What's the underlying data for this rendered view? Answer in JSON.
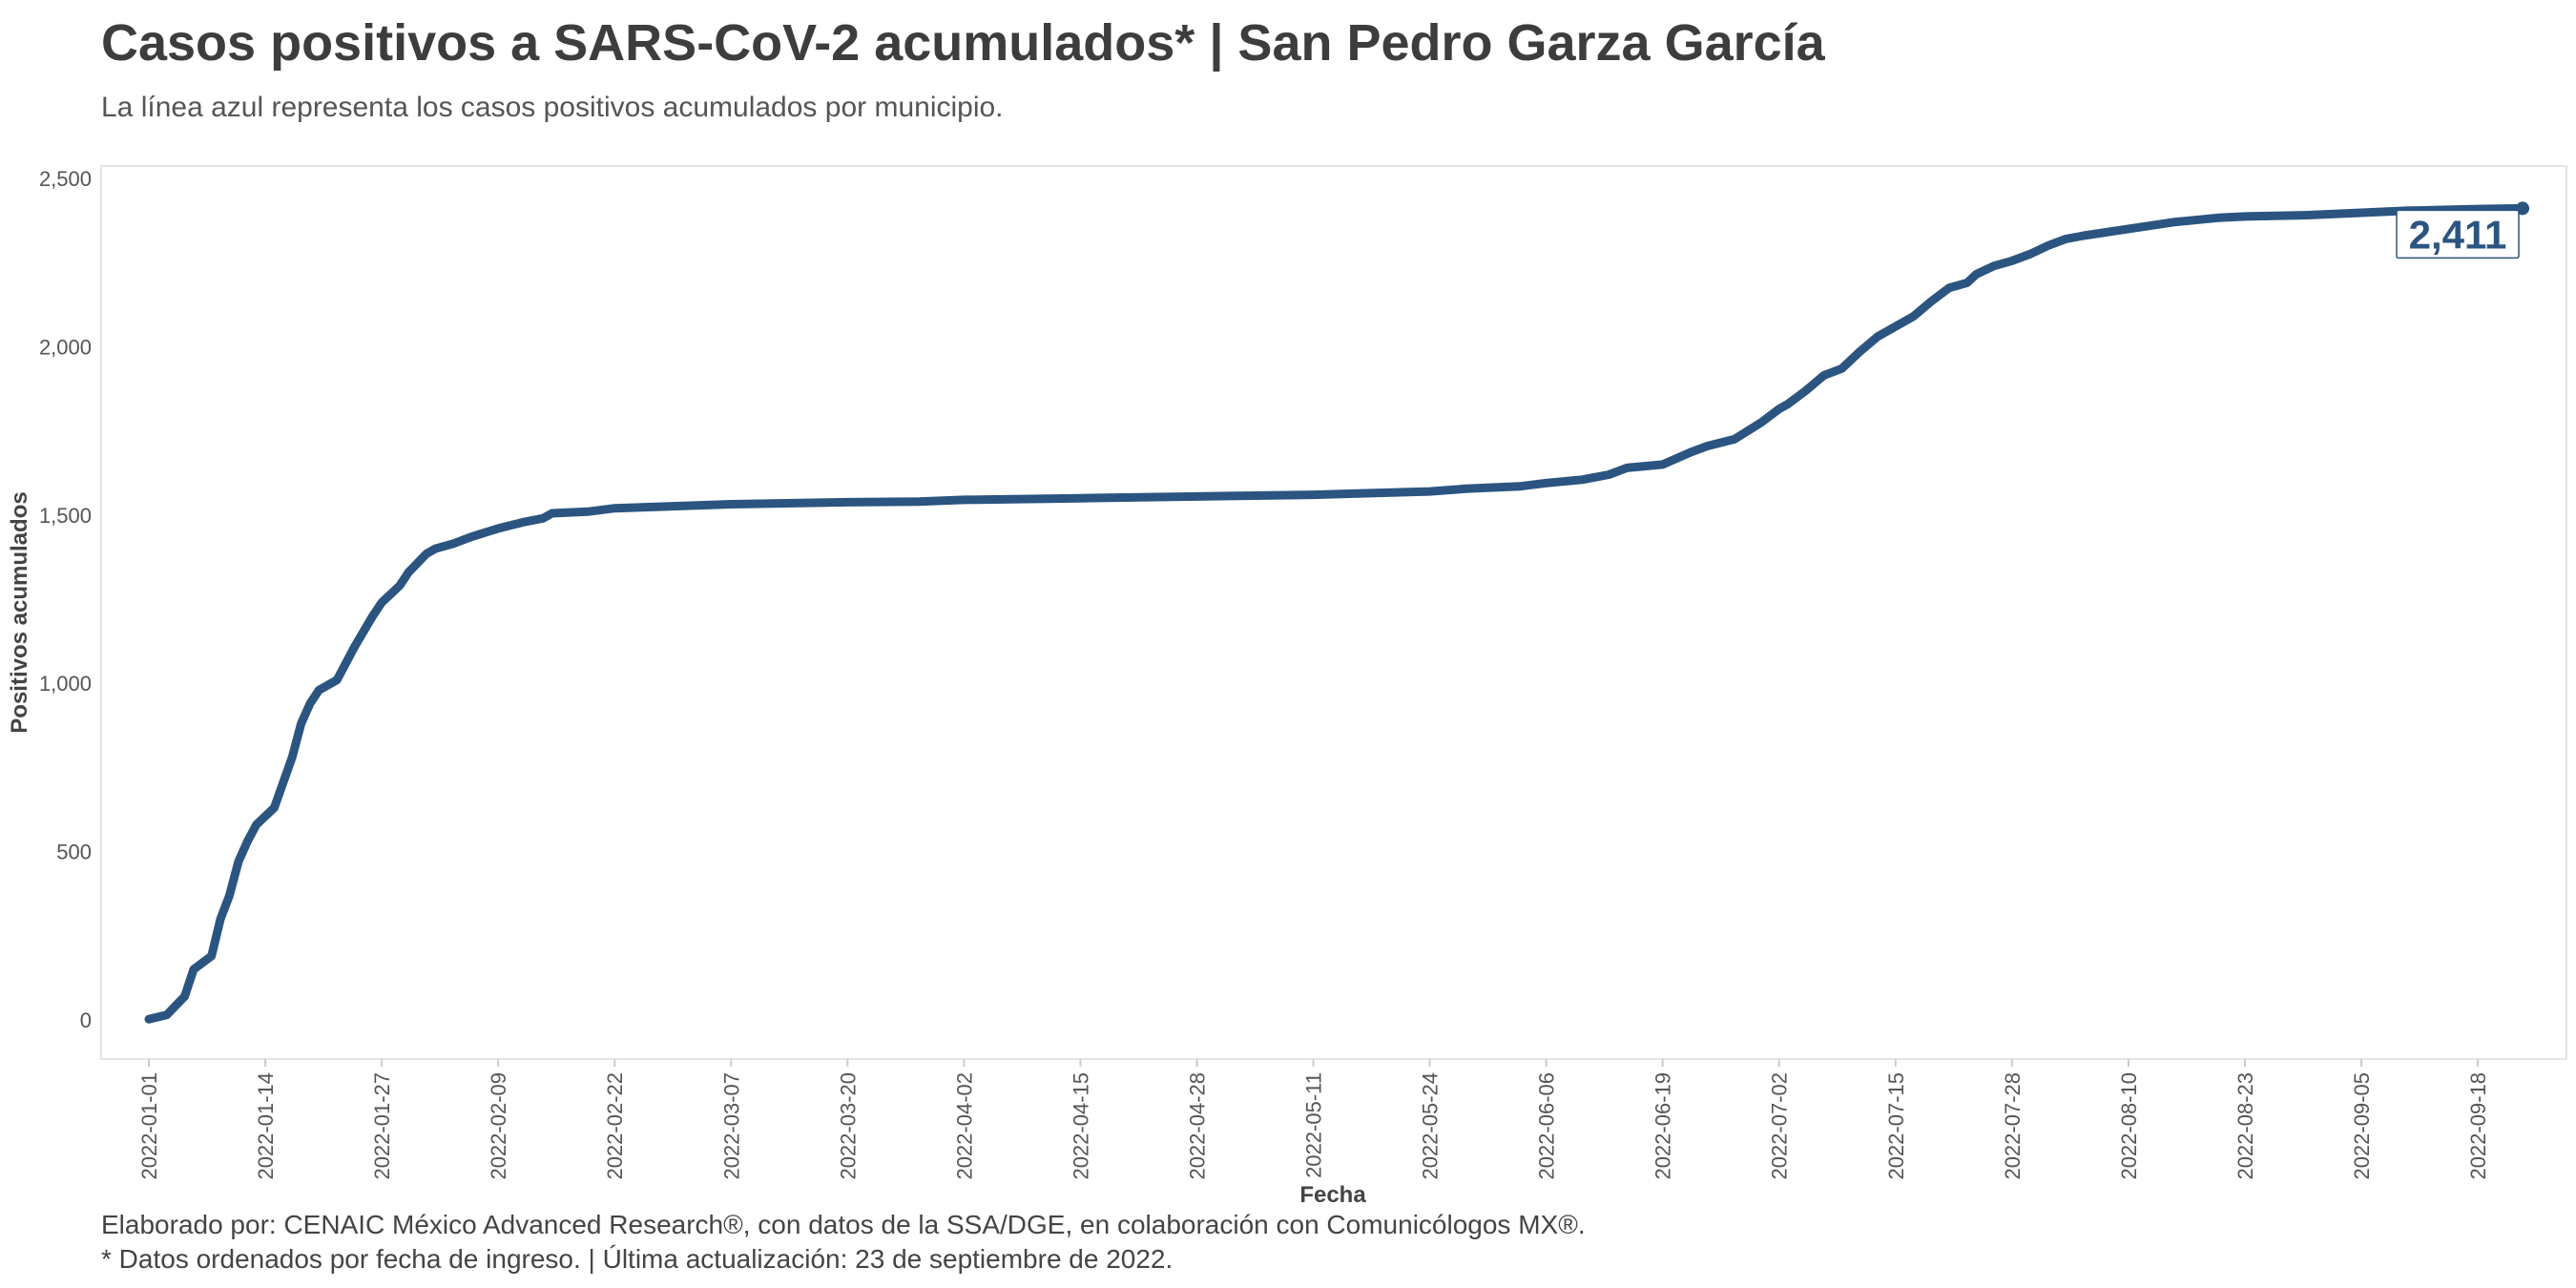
{
  "title": "Casos positivos a SARS-CoV-2 acumulados* | San Pedro Garza García",
  "subtitle": "La línea azul representa los casos positivos acumulados por municipio.",
  "caption": {
    "line1": "Elaborado por: CENAIC México Advanced Research®, con datos de la SSA/DGE, en colaboración con Comunicólogos MX®.",
    "line2": "* Datos ordenados por fecha de ingreso. | Última actualización: 23 de septiembre de 2022."
  },
  "colors": {
    "line": "#2b5580",
    "label_text": "#2b5580",
    "axis_text": "#555555"
  },
  "chart_data": {
    "type": "line",
    "xlabel": "Fecha",
    "ylabel": "Positivos acumulados",
    "ylim": [
      0,
      2500
    ],
    "yticks": [
      0,
      500,
      1000,
      1500,
      2000,
      2500
    ],
    "ytick_labels": [
      "0",
      "500",
      "1,000",
      "1,500",
      "2,000",
      "2,500"
    ],
    "xlim": [
      "2022-01-01",
      "2022-09-23"
    ],
    "xticks": [
      "2022-01-01",
      "2022-01-14",
      "2022-01-27",
      "2022-02-09",
      "2022-02-22",
      "2022-03-07",
      "2022-03-20",
      "2022-04-02",
      "2022-04-15",
      "2022-04-28",
      "2022-05-11",
      "2022-05-24",
      "2022-06-06",
      "2022-06-19",
      "2022-07-02",
      "2022-07-15",
      "2022-07-28",
      "2022-08-10",
      "2022-08-23",
      "2022-09-05",
      "2022-09-18"
    ],
    "grid": false,
    "end_label": "2,411",
    "series": [
      {
        "points": [
          [
            "2022-01-01",
            2
          ],
          [
            "2022-01-03",
            15
          ],
          [
            "2022-01-05",
            70
          ],
          [
            "2022-01-06",
            150
          ],
          [
            "2022-01-08",
            190
          ],
          [
            "2022-01-09",
            300
          ],
          [
            "2022-01-10",
            370
          ],
          [
            "2022-01-11",
            470
          ],
          [
            "2022-01-12",
            530
          ],
          [
            "2022-01-13",
            580
          ],
          [
            "2022-01-15",
            630
          ],
          [
            "2022-01-17",
            780
          ],
          [
            "2022-01-18",
            880
          ],
          [
            "2022-01-19",
            940
          ],
          [
            "2022-01-20",
            980
          ],
          [
            "2022-01-22",
            1010
          ],
          [
            "2022-01-24",
            1110
          ],
          [
            "2022-01-26",
            1200
          ],
          [
            "2022-01-27",
            1240
          ],
          [
            "2022-01-29",
            1290
          ],
          [
            "2022-01-30",
            1330
          ],
          [
            "2022-02-01",
            1385
          ],
          [
            "2022-02-02",
            1400
          ],
          [
            "2022-02-04",
            1415
          ],
          [
            "2022-02-06",
            1435
          ],
          [
            "2022-02-09",
            1460
          ],
          [
            "2022-02-12",
            1480
          ],
          [
            "2022-02-14",
            1490
          ],
          [
            "2022-02-15",
            1505
          ],
          [
            "2022-02-19",
            1510
          ],
          [
            "2022-02-22",
            1520
          ],
          [
            "2022-03-07",
            1532
          ],
          [
            "2022-03-20",
            1538
          ],
          [
            "2022-03-28",
            1540
          ],
          [
            "2022-04-02",
            1545
          ],
          [
            "2022-04-15",
            1550
          ],
          [
            "2022-04-28",
            1555
          ],
          [
            "2022-05-11",
            1560
          ],
          [
            "2022-05-24",
            1570
          ],
          [
            "2022-05-28",
            1578
          ],
          [
            "2022-06-03",
            1585
          ],
          [
            "2022-06-06",
            1595
          ],
          [
            "2022-06-10",
            1605
          ],
          [
            "2022-06-13",
            1620
          ],
          [
            "2022-06-15",
            1640
          ],
          [
            "2022-06-19",
            1650
          ],
          [
            "2022-06-22",
            1685
          ],
          [
            "2022-06-24",
            1705
          ],
          [
            "2022-06-27",
            1725
          ],
          [
            "2022-06-30",
            1775
          ],
          [
            "2022-07-02",
            1815
          ],
          [
            "2022-07-03",
            1830
          ],
          [
            "2022-07-05",
            1870
          ],
          [
            "2022-07-07",
            1915
          ],
          [
            "2022-07-09",
            1935
          ],
          [
            "2022-07-11",
            1985
          ],
          [
            "2022-07-13",
            2030
          ],
          [
            "2022-07-15",
            2060
          ],
          [
            "2022-07-17",
            2090
          ],
          [
            "2022-07-19",
            2135
          ],
          [
            "2022-07-21",
            2175
          ],
          [
            "2022-07-23",
            2190
          ],
          [
            "2022-07-24",
            2215
          ],
          [
            "2022-07-26",
            2240
          ],
          [
            "2022-07-28",
            2255
          ],
          [
            "2022-07-30",
            2275
          ],
          [
            "2022-08-01",
            2300
          ],
          [
            "2022-08-03",
            2320
          ],
          [
            "2022-08-05",
            2330
          ],
          [
            "2022-08-10",
            2350
          ],
          [
            "2022-08-15",
            2370
          ],
          [
            "2022-08-20",
            2383
          ],
          [
            "2022-08-23",
            2387
          ],
          [
            "2022-08-30",
            2391
          ],
          [
            "2022-09-05",
            2398
          ],
          [
            "2022-09-10",
            2404
          ],
          [
            "2022-09-18",
            2409
          ],
          [
            "2022-09-23",
            2411
          ]
        ]
      }
    ]
  }
}
